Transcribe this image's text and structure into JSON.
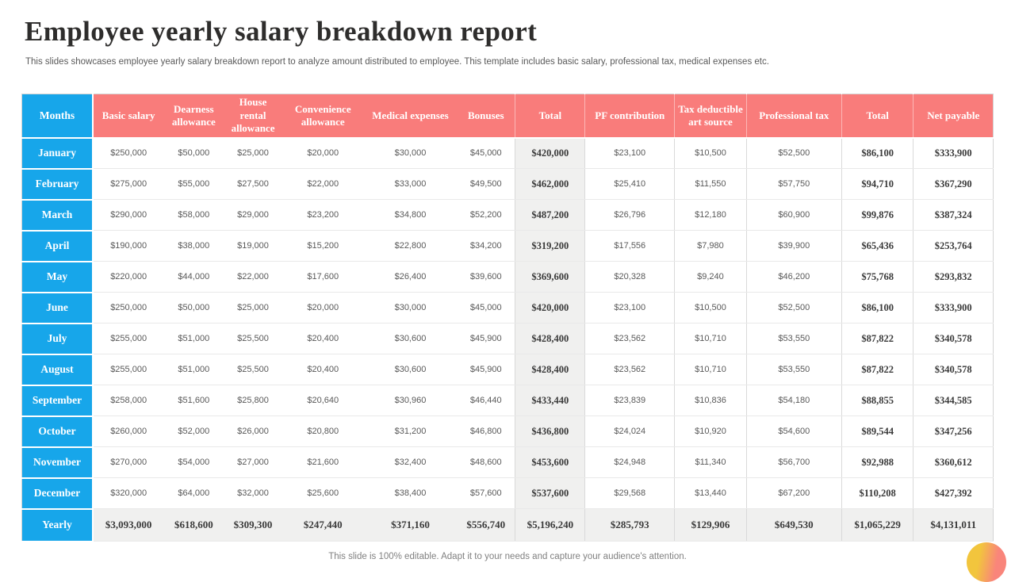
{
  "page": {
    "title": "Employee yearly salary breakdown report",
    "subtitle": "This slides showcases employee yearly salary breakdown report to analyze amount distributed to employee. This template includes basic salary, professional tax, medical expenses etc.",
    "footer": "This slide is 100% editable. Adapt it to your needs and capture your audience's attention."
  },
  "colors": {
    "title-text": "#2e2d2c",
    "subtitle-text": "#595959",
    "header-bg": "#f97c7b",
    "month-bg": "#17a6ea",
    "total-col-bg": "#f0f0ef",
    "table-border": "#d4d4d4",
    "row-border": "#e9e9e9",
    "col-border": "#d9d9d9",
    "value-text": "#595959",
    "bold-text": "#3a3a3a",
    "footer-text": "#808080",
    "circle-yellow": "#f2c53d",
    "circle-salmon": "#f9857b"
  },
  "table": {
    "columns": [
      "Months",
      "Basic salary",
      "Dearness allowance",
      "House rental allowance",
      "Convenience allowance",
      "Medical expenses",
      "Bonuses",
      "Total",
      "PF contribution",
      "Tax deductible art source",
      "Professional tax",
      "Total",
      "Net payable"
    ],
    "rows": [
      {
        "month": "January",
        "values": [
          "$250,000",
          "$50,000",
          "$25,000",
          "$20,000",
          "$30,000",
          "$45,000",
          "$420,000",
          "$23,100",
          "$10,500",
          "$52,500",
          "$86,100",
          "$333,900"
        ]
      },
      {
        "month": "February",
        "values": [
          "$275,000",
          "$55,000",
          "$27,500",
          "$22,000",
          "$33,000",
          "$49,500",
          "$462,000",
          "$25,410",
          "$11,550",
          "$57,750",
          "$94,710",
          "$367,290"
        ]
      },
      {
        "month": "March",
        "values": [
          "$290,000",
          "$58,000",
          "$29,000",
          "$23,200",
          "$34,800",
          "$52,200",
          "$487,200",
          "$26,796",
          "$12,180",
          "$60,900",
          "$99,876",
          "$387,324"
        ]
      },
      {
        "month": "April",
        "values": [
          "$190,000",
          "$38,000",
          "$19,000",
          "$15,200",
          "$22,800",
          "$34,200",
          "$319,200",
          "$17,556",
          "$7,980",
          "$39,900",
          "$65,436",
          "$253,764"
        ]
      },
      {
        "month": "May",
        "values": [
          "$220,000",
          "$44,000",
          "$22,000",
          "$17,600",
          "$26,400",
          "$39,600",
          "$369,600",
          "$20,328",
          "$9,240",
          "$46,200",
          "$75,768",
          "$293,832"
        ]
      },
      {
        "month": "June",
        "values": [
          "$250,000",
          "$50,000",
          "$25,000",
          "$20,000",
          "$30,000",
          "$45,000",
          "$420,000",
          "$23,100",
          "$10,500",
          "$52,500",
          "$86,100",
          "$333,900"
        ]
      },
      {
        "month": "July",
        "values": [
          "$255,000",
          "$51,000",
          "$25,500",
          "$20,400",
          "$30,600",
          "$45,900",
          "$428,400",
          "$23,562",
          "$10,710",
          "$53,550",
          "$87,822",
          "$340,578"
        ]
      },
      {
        "month": "August",
        "values": [
          "$255,000",
          "$51,000",
          "$25,500",
          "$20,400",
          "$30,600",
          "$45,900",
          "$428,400",
          "$23,562",
          "$10,710",
          "$53,550",
          "$87,822",
          "$340,578"
        ]
      },
      {
        "month": "September",
        "values": [
          "$258,000",
          "$51,600",
          "$25,800",
          "$20,640",
          "$30,960",
          "$46,440",
          "$433,440",
          "$23,839",
          "$10,836",
          "$54,180",
          "$88,855",
          "$344,585"
        ]
      },
      {
        "month": "October",
        "values": [
          "$260,000",
          "$52,000",
          "$26,000",
          "$20,800",
          "$31,200",
          "$46,800",
          "$436,800",
          "$24,024",
          "$10,920",
          "$54,600",
          "$89,544",
          "$347,256"
        ]
      },
      {
        "month": "November",
        "values": [
          "$270,000",
          "$54,000",
          "$27,000",
          "$21,600",
          "$32,400",
          "$48,600",
          "$453,600",
          "$24,948",
          "$11,340",
          "$56,700",
          "$92,988",
          "$360,612"
        ]
      },
      {
        "month": "December",
        "values": [
          "$320,000",
          "$64,000",
          "$32,000",
          "$25,600",
          "$38,400",
          "$57,600",
          "$537,600",
          "$29,568",
          "$13,440",
          "$67,200",
          "$110,208",
          "$427,392"
        ]
      }
    ],
    "yearly": {
      "month": "Yearly",
      "values": [
        "$3,093,000",
        "$618,600",
        "$309,300",
        "$247,440",
        "$371,160",
        "$556,740",
        "$5,196,240",
        "$285,793",
        "$129,906",
        "$649,530",
        "$1,065,229",
        "$4,131,011"
      ]
    }
  }
}
